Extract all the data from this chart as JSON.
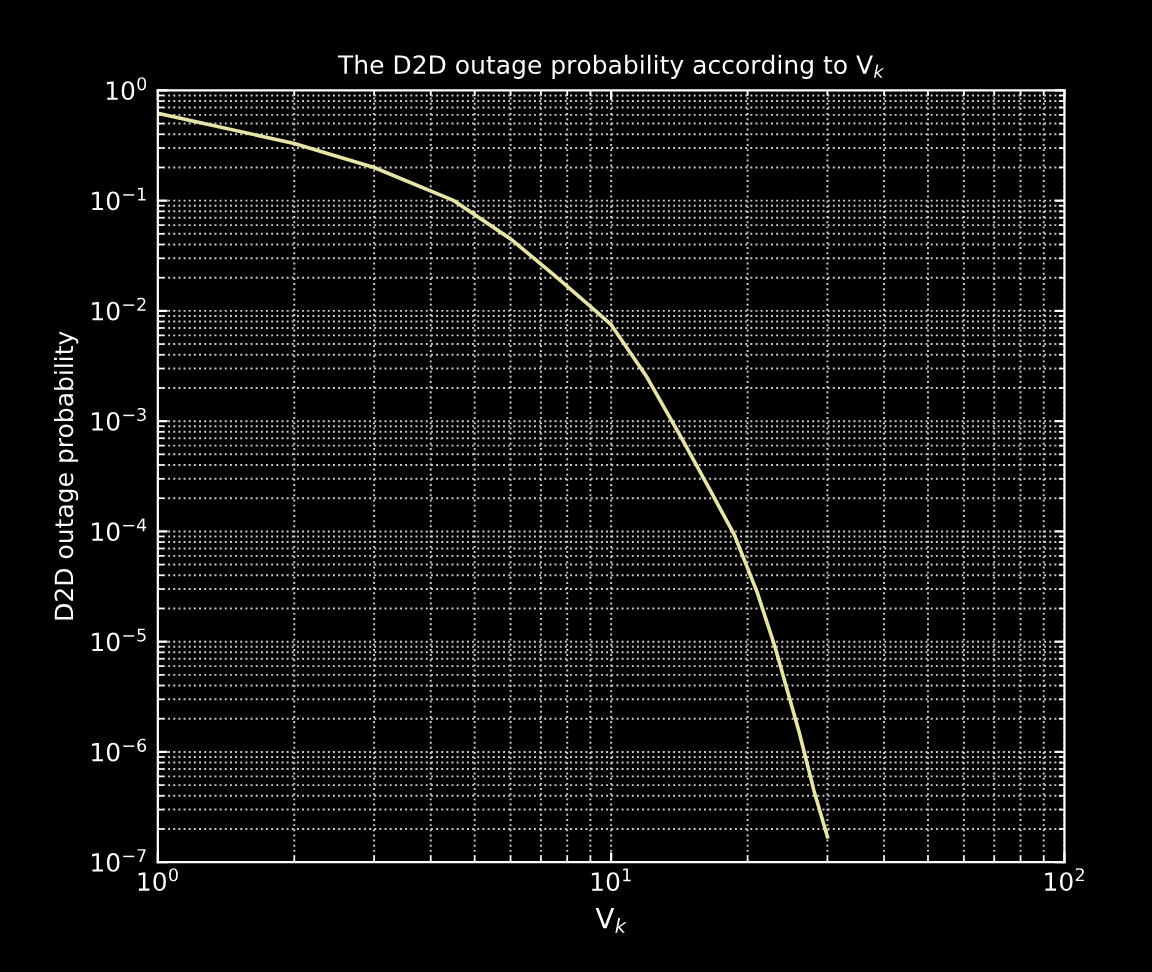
{
  "chart_data": {
    "type": "line",
    "title": "The D2D outage probability according to V$_{k}$",
    "xlabel": "V$_{k}$",
    "ylabel": "D2D outage probability",
    "log": "xy",
    "grid": true,
    "marker": "none",
    "line_style": "solid",
    "xlim": [
      1,
      100
    ],
    "ylim": [
      1e-07,
      1
    ],
    "xticks": [
      {
        "value": 1,
        "label": "10$^{0}$"
      },
      {
        "value": 10,
        "label": "10$^{1}$"
      },
      {
        "value": 100,
        "label": "10$^{2}$"
      }
    ],
    "yticks": [
      {
        "value": 1e-07,
        "label": "10$^{−7}$"
      },
      {
        "value": 1e-06,
        "label": "10$^{−6}$"
      },
      {
        "value": 1e-05,
        "label": "10$^{−5}$"
      },
      {
        "value": 0.0001,
        "label": "10$^{−4}$"
      },
      {
        "value": 0.001,
        "label": "10$^{−3}$"
      },
      {
        "value": 0.01,
        "label": "10$^{−2}$"
      },
      {
        "value": 0.1,
        "label": "10$^{−1}$"
      },
      {
        "value": 1,
        "label": "10$^{0}$"
      }
    ],
    "series": [
      {
        "color": "#e6e6a0",
        "x": [
          1,
          2,
          3,
          4.5,
          6,
          7.5,
          9,
          10,
          12,
          14.3,
          16.5,
          18.7,
          21,
          23,
          26,
          28,
          30
        ],
        "values": [
          0.62,
          0.33,
          0.2,
          0.1,
          0.045,
          0.021,
          0.011,
          0.0075,
          0.0025,
          0.0007,
          0.00024,
          9.3e-05,
          2.8e-05,
          8.9e-06,
          1.5e-06,
          4.5e-07,
          1.7e-07
        ]
      }
    ]
  }
}
